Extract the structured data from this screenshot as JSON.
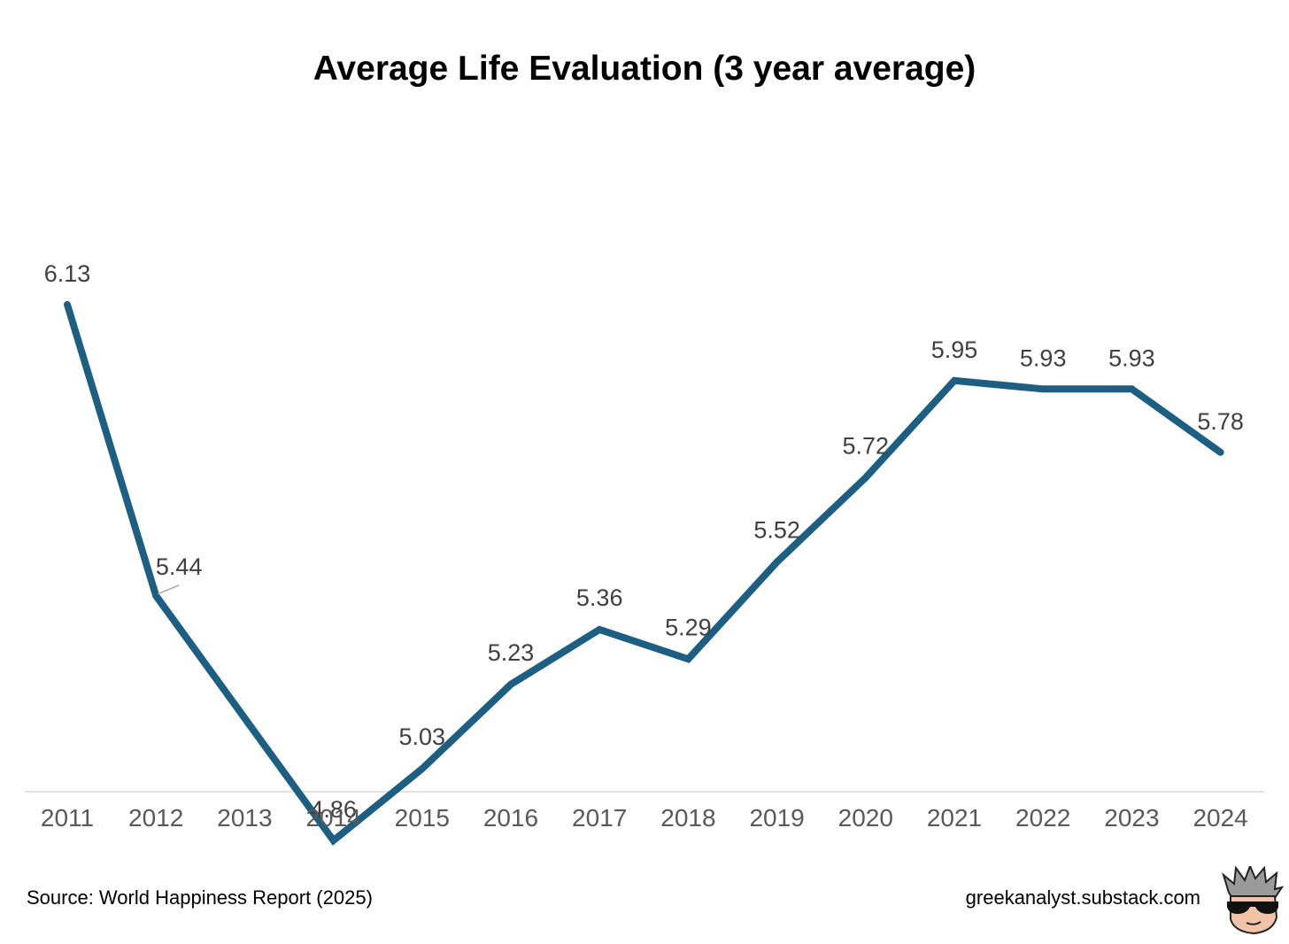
{
  "chart_data": {
    "type": "line",
    "title": "Average Life Evaluation (3 year average)",
    "xlabel": "",
    "ylabel": "",
    "categories": [
      "2011",
      "2012",
      "2013",
      "2014",
      "2015",
      "2016",
      "2017",
      "2018",
      "2019",
      "2020",
      "2021",
      "2022",
      "2023",
      "2024"
    ],
    "series": [
      {
        "values": [
          6.13,
          5.44,
          5.15,
          4.86,
          5.03,
          5.23,
          5.36,
          5.29,
          5.52,
          5.72,
          5.95,
          5.93,
          5.93,
          5.78
        ],
        "labels": [
          "6.13",
          "5.44",
          "",
          "4.86",
          "5.03",
          "5.23",
          "5.36",
          "5.29",
          "5.52",
          "5.72",
          "5.95",
          "5.93",
          "5.93",
          "5.78"
        ]
      }
    ],
    "grid": false,
    "legend": "none",
    "colors": {
      "line": "#1d5f82",
      "axis": "#d9d9d9",
      "tick_text": "#595959",
      "label_text": "#404040"
    }
  },
  "footer": {
    "source": "Source: World Happiness Report (2025)",
    "site": "greekanalyst.substack.com"
  },
  "branding": {
    "avatar_icon": "cartoon-avatar-sunglasses-icon"
  }
}
